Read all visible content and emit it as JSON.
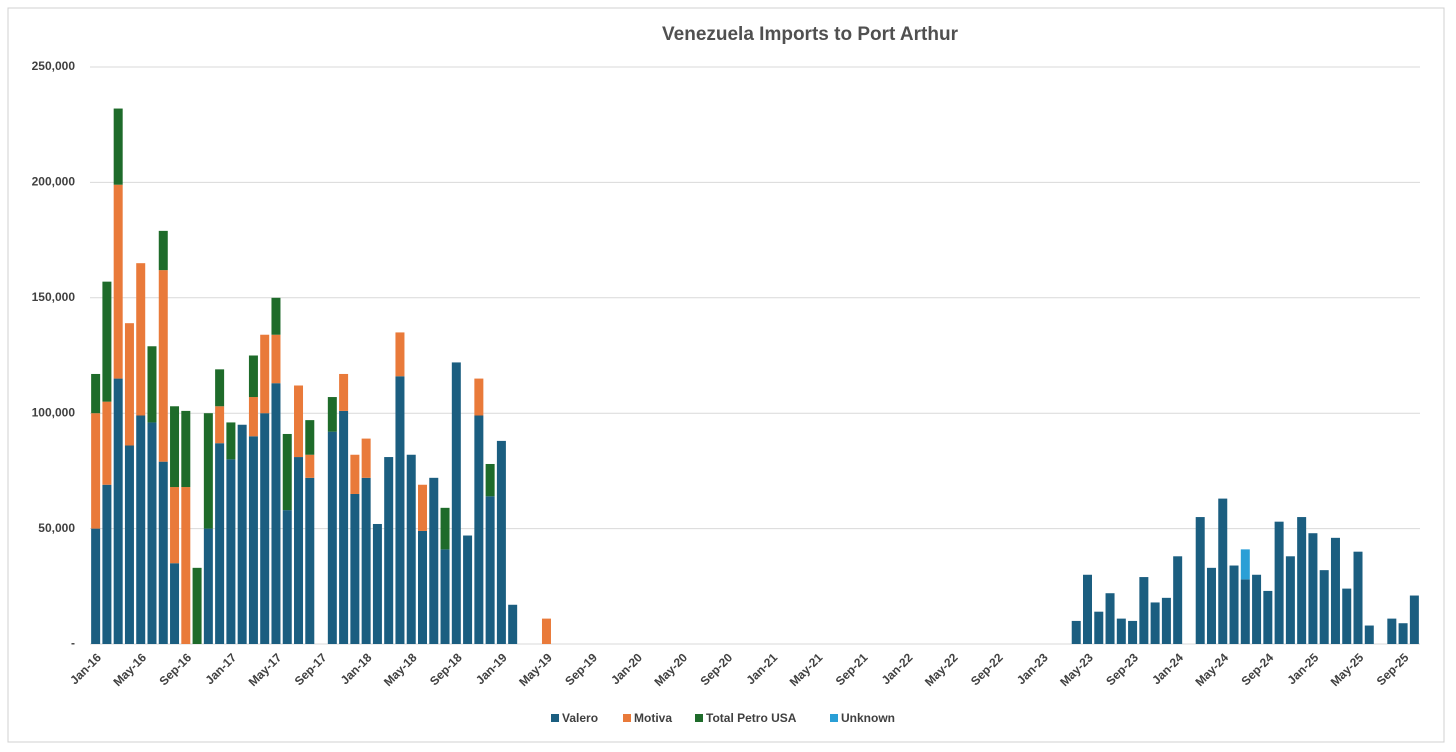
{
  "chart_data": {
    "type": "stacked_bar",
    "title": "Venezuela Imports to Port Arthur",
    "categories": [
      "Jan-16",
      null,
      null,
      null,
      "May-16",
      null,
      null,
      null,
      "Sep-16",
      null,
      null,
      null,
      "Jan-17",
      null,
      null,
      null,
      "May-17",
      null,
      null,
      null,
      "Sep-17",
      null,
      null,
      null,
      "Jan-18",
      null,
      null,
      null,
      "May-18",
      null,
      null,
      null,
      "Sep-18",
      null,
      null,
      null,
      "Jan-19",
      null,
      null,
      null,
      "May-19",
      null,
      null,
      null,
      "Sep-19",
      null,
      null,
      null,
      "Jan-20",
      null,
      null,
      null,
      "May-20",
      null,
      null,
      null,
      "Sep-20",
      null,
      null,
      null,
      "Jan-21",
      null,
      null,
      null,
      "May-21",
      null,
      null,
      null,
      "Sep-21",
      null,
      null,
      null,
      "Jan-22",
      null,
      null,
      null,
      "May-22",
      null,
      null,
      null,
      "Sep-22",
      null,
      null,
      null,
      "Jan-23",
      null,
      null,
      null,
      "May-23",
      null,
      null,
      null,
      "Sep-23",
      null,
      null,
      null,
      "Jan-24",
      null,
      null,
      null,
      "May-24",
      null,
      null,
      null,
      "Sep-24",
      null,
      null,
      null,
      "Jan-25",
      null,
      null,
      null,
      "May-25",
      null,
      null,
      null,
      "Sep-25",
      null
    ],
    "series": [
      {
        "name": "Valero",
        "color": "#1b5e80",
        "values": [
          50000,
          69000,
          115000,
          86000,
          99000,
          96000,
          79000,
          35000,
          null,
          null,
          50000,
          87000,
          80000,
          95000,
          90000,
          100000,
          113000,
          58000,
          81000,
          72000,
          null,
          92000,
          101000,
          65000,
          72000,
          52000,
          81000,
          116000,
          82000,
          49000,
          72000,
          41000,
          122000,
          47000,
          99000,
          64000,
          88000,
          17000,
          null,
          null,
          null,
          null,
          null,
          null,
          null,
          null,
          null,
          null,
          null,
          null,
          null,
          null,
          null,
          null,
          null,
          null,
          null,
          null,
          null,
          null,
          null,
          null,
          null,
          null,
          null,
          null,
          null,
          null,
          null,
          null,
          null,
          null,
          null,
          null,
          null,
          null,
          null,
          null,
          null,
          null,
          null,
          null,
          null,
          null,
          null,
          null,
          null,
          10000,
          30000,
          14000,
          22000,
          11000,
          10000,
          29000,
          18000,
          20000,
          38000,
          null,
          55000,
          33000,
          63000,
          34000,
          28000,
          30000,
          23000,
          53000,
          38000,
          55000,
          48000,
          32000,
          46000,
          24000,
          40000,
          8000,
          null,
          11000,
          9000,
          21000
        ]
      },
      {
        "name": "Motiva",
        "color": "#e97a3a",
        "values": [
          50000,
          36000,
          84000,
          53000,
          66000,
          null,
          83000,
          33000,
          68000,
          null,
          null,
          16000,
          null,
          null,
          17000,
          34000,
          21000,
          null,
          31000,
          10000,
          null,
          null,
          16000,
          17000,
          17000,
          null,
          null,
          19000,
          null,
          20000,
          null,
          null,
          null,
          null,
          16000,
          null,
          null,
          null,
          null,
          null,
          11000,
          null,
          null,
          null,
          null,
          null,
          null,
          null,
          null,
          null,
          null,
          null,
          null,
          null,
          null,
          null,
          null,
          null,
          null,
          null,
          null,
          null,
          null,
          null,
          null,
          null,
          null,
          null,
          null,
          null,
          null,
          null,
          null,
          null,
          null,
          null,
          null,
          null,
          null,
          null,
          null,
          null,
          null,
          null,
          null,
          null,
          null,
          null,
          null,
          null,
          null,
          null,
          null,
          null,
          null,
          null,
          null,
          null,
          null,
          null,
          null,
          null,
          null,
          null,
          null,
          null,
          null,
          null,
          null,
          null,
          null,
          null,
          null,
          null,
          null,
          null,
          null,
          null
        ]
      },
      {
        "name": "Total Petro USA",
        "color": "#1e6b2a",
        "values": [
          17000,
          52000,
          33000,
          null,
          null,
          33000,
          17000,
          35000,
          33000,
          33000,
          50000,
          16000,
          16000,
          null,
          18000,
          null,
          16000,
          33000,
          null,
          15000,
          null,
          15000,
          null,
          null,
          null,
          null,
          null,
          null,
          null,
          null,
          null,
          18000,
          null,
          null,
          null,
          14000,
          null,
          null,
          null,
          null,
          null,
          null,
          null,
          null,
          null,
          null,
          null,
          null,
          null,
          null,
          null,
          null,
          null,
          null,
          null,
          null,
          null,
          null,
          null,
          null,
          null,
          null,
          null,
          null,
          null,
          null,
          null,
          null,
          null,
          null,
          null,
          null,
          null,
          null,
          null,
          null,
          null,
          null,
          null,
          null,
          null,
          null,
          null,
          null,
          null,
          null,
          null,
          null,
          null,
          null,
          null,
          null,
          null,
          null,
          null,
          null,
          null,
          null,
          null,
          null,
          null,
          null,
          null,
          null,
          null,
          null,
          null,
          null,
          null,
          null,
          null,
          null,
          null,
          null,
          null,
          null,
          null,
          null
        ]
      },
      {
        "name": "Unknown",
        "color": "#2a9fd6",
        "values": [
          null,
          null,
          null,
          null,
          null,
          null,
          null,
          null,
          null,
          null,
          null,
          null,
          null,
          null,
          null,
          null,
          null,
          null,
          null,
          null,
          null,
          null,
          null,
          null,
          null,
          null,
          null,
          null,
          null,
          null,
          null,
          null,
          null,
          null,
          null,
          null,
          null,
          null,
          null,
          null,
          null,
          null,
          null,
          null,
          null,
          null,
          null,
          null,
          null,
          null,
          null,
          null,
          null,
          null,
          null,
          null,
          null,
          null,
          null,
          null,
          null,
          null,
          null,
          null,
          null,
          null,
          null,
          null,
          null,
          null,
          null,
          null,
          null,
          null,
          null,
          null,
          null,
          null,
          null,
          null,
          null,
          null,
          null,
          null,
          null,
          null,
          null,
          null,
          null,
          null,
          null,
          null,
          null,
          null,
          null,
          null,
          null,
          null,
          null,
          null,
          null,
          null,
          13000,
          null,
          null,
          null,
          null,
          null,
          null,
          null,
          null,
          null,
          null,
          null,
          null,
          null,
          null,
          null
        ]
      }
    ],
    "ylim": [
      0,
      250000
    ],
    "yticks": [
      {
        "value": 0,
        "label": "-"
      },
      {
        "value": 50000,
        "label": "50,000"
      },
      {
        "value": 100000,
        "label": "100,000"
      },
      {
        "value": 150000,
        "label": "150,000"
      },
      {
        "value": 200000,
        "label": "200,000"
      },
      {
        "value": 250000,
        "label": "250,000"
      }
    ],
    "grid": true,
    "legend": "bottom"
  }
}
